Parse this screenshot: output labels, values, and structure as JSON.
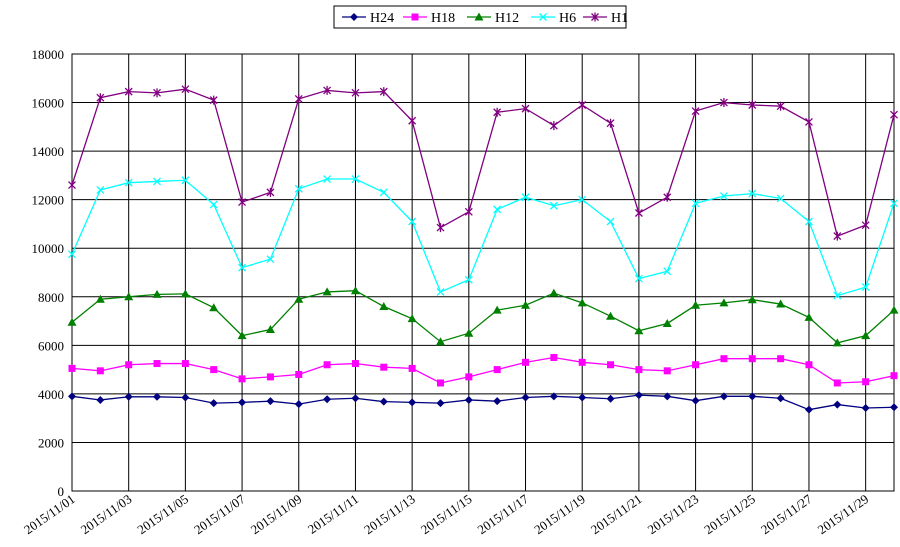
{
  "chart_data": {
    "type": "line",
    "title": "",
    "xlabel": "",
    "ylabel": "",
    "ylim": [
      0,
      18000
    ],
    "yticks": [
      0,
      2000,
      4000,
      6000,
      8000,
      10000,
      12000,
      14000,
      16000,
      18000
    ],
    "grid": "on",
    "legend_position": "top",
    "categories": [
      "2015/11/01",
      "2015/11/02",
      "2015/11/03",
      "2015/11/04",
      "2015/11/05",
      "2015/11/06",
      "2015/11/07",
      "2015/11/08",
      "2015/11/09",
      "2015/11/10",
      "2015/11/11",
      "2015/11/12",
      "2015/11/13",
      "2015/11/14",
      "2015/11/15",
      "2015/11/16",
      "2015/11/17",
      "2015/11/18",
      "2015/11/19",
      "2015/11/20",
      "2015/11/21",
      "2015/11/22",
      "2015/11/23",
      "2015/11/24",
      "2015/11/25",
      "2015/11/26",
      "2015/11/27",
      "2015/11/28",
      "2015/11/29",
      "2015/11/30"
    ],
    "tick_labels": [
      "2015/11/01",
      "2015/11/03",
      "2015/11/05",
      "2015/11/07",
      "2015/11/09",
      "2015/11/11",
      "2015/11/13",
      "2015/11/15",
      "2015/11/17",
      "2015/11/19",
      "2015/11/21",
      "2015/11/23",
      "2015/11/25",
      "2015/11/27",
      "2015/11/29"
    ],
    "series": [
      {
        "name": "H24",
        "color": "#000080",
        "marker": "diamond",
        "values": [
          3900,
          3750,
          3880,
          3880,
          3850,
          3620,
          3650,
          3700,
          3580,
          3780,
          3820,
          3680,
          3650,
          3620,
          3750,
          3700,
          3850,
          3900,
          3850,
          3800,
          3950,
          3900,
          3720,
          3900,
          3900,
          3820,
          3350,
          3560,
          3420,
          3450
        ]
      },
      {
        "name": "H18",
        "color": "#ff00ff",
        "marker": "square",
        "values": [
          5050,
          4950,
          5200,
          5250,
          5250,
          5000,
          4620,
          4700,
          4800,
          5200,
          5250,
          5100,
          5050,
          4450,
          4700,
          5000,
          5300,
          5500,
          5300,
          5200,
          5000,
          4950,
          5200,
          5450,
          5450,
          5450,
          5200,
          4450,
          4500,
          4750
        ]
      },
      {
        "name": "H12",
        "color": "#008000",
        "marker": "triangle",
        "values": [
          6950,
          7900,
          8000,
          8100,
          8120,
          7550,
          6400,
          6650,
          7900,
          8200,
          8250,
          7600,
          7100,
          6150,
          6500,
          7450,
          7650,
          8150,
          7750,
          7200,
          6600,
          6900,
          7650,
          7750,
          7880,
          7700,
          7150,
          6100,
          6400,
          7450
        ]
      },
      {
        "name": "H6",
        "color": "#00ffff",
        "marker": "x",
        "values": [
          9750,
          12400,
          12700,
          12750,
          12800,
          11800,
          9200,
          9550,
          12450,
          12850,
          12850,
          12300,
          11100,
          8200,
          8700,
          11600,
          12100,
          11750,
          12000,
          11100,
          8750,
          9050,
          11850,
          12150,
          12250,
          12050,
          11100,
          8050,
          8400,
          11850
        ]
      },
      {
        "name": "H1",
        "color": "#800080",
        "marker": "star",
        "values": [
          12600,
          16200,
          16450,
          16400,
          16550,
          16100,
          11900,
          12300,
          16150,
          16500,
          16400,
          16450,
          15250,
          10850,
          11500,
          15600,
          15750,
          15050,
          15900,
          15150,
          11450,
          12100,
          15650,
          16000,
          15900,
          15850,
          15200,
          10500,
          10950,
          15500
        ]
      }
    ]
  }
}
